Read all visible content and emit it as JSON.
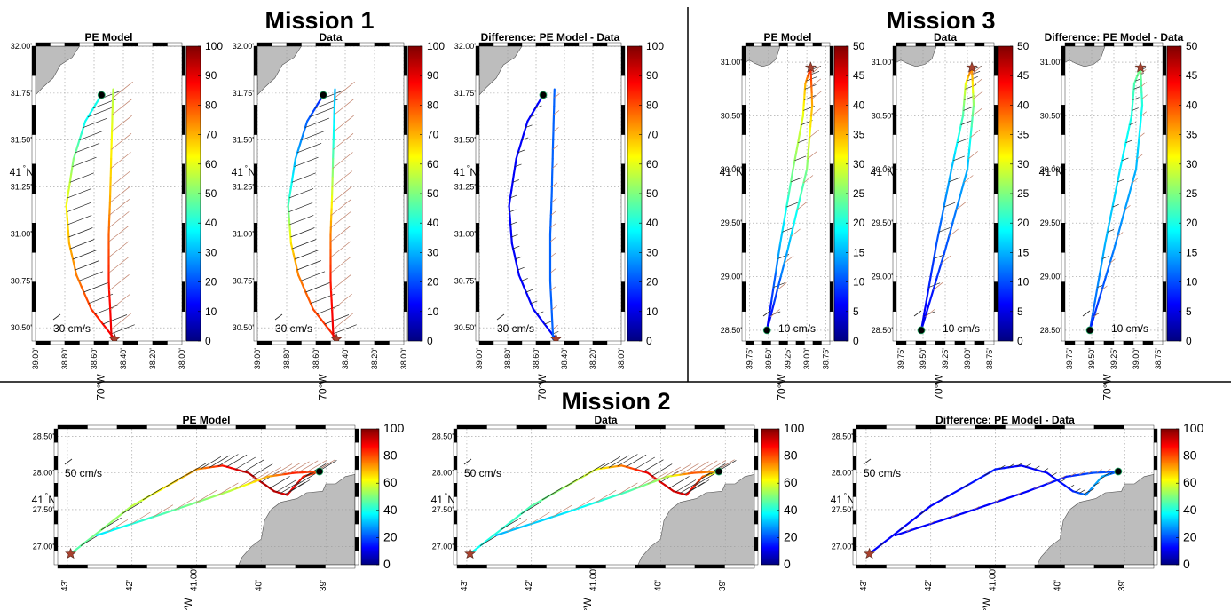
{
  "figure": {
    "missions": [
      {
        "id": "m1",
        "title": "Mission 1",
        "lat_major": "41",
        "lon_major": "70",
        "lat_hemi": "N",
        "lon_hemi": "W",
        "lat_mid_tick": "31.25'",
        "lon_mid_tick": "38.60'",
        "ticks_y": [
          "30.50'",
          "30.75'",
          "31.00'",
          "31.25'",
          "31.50'",
          "31.75'",
          "32.00'"
        ],
        "ticks_y_values": [
          30.5,
          30.75,
          31.0,
          31.25,
          31.5,
          31.75,
          32.0
        ],
        "ticks_x": [
          "39.00'",
          "38.80'",
          "38.60'",
          "38.40'",
          "38.20'",
          "38.00'"
        ],
        "ticks_x_values": [
          39.0,
          38.8,
          38.6,
          38.4,
          38.2,
          38.0
        ],
        "scale_label": "30 cm/s",
        "colorbar_ticks": [
          0,
          10,
          20,
          30,
          40,
          50,
          60,
          70,
          80,
          90,
          100
        ],
        "colorbar_range": [
          0,
          100
        ],
        "panels": [
          {
            "title": "PE Model"
          },
          {
            "title": "Data"
          },
          {
            "title": "Difference: PE Model - Data"
          }
        ]
      },
      {
        "id": "m3",
        "title": "Mission 3",
        "lat_major": "41",
        "lon_major": "70",
        "lat_hemi": "N",
        "lon_hemi": "W",
        "lat_mid_tick": "29.50'",
        "lon_mid_tick": "39.25'",
        "ticks_y": [
          "28.50'",
          "29.00'",
          "29.50'",
          "30.00'",
          "30.50'",
          "31.00'"
        ],
        "ticks_y_values": [
          28.5,
          29.0,
          29.5,
          30.0,
          30.5,
          31.0
        ],
        "ticks_x": [
          "39.75'",
          "39.50'",
          "39.25'",
          "39.00'",
          "38.75'"
        ],
        "ticks_x_values": [
          39.75,
          39.5,
          39.25,
          39.0,
          38.75
        ],
        "scale_label": "10 cm/s",
        "colorbar_ticks": [
          0,
          5,
          10,
          15,
          20,
          25,
          30,
          35,
          40,
          45,
          50
        ],
        "colorbar_range": [
          0,
          50
        ],
        "panels": [
          {
            "title": "PE Model"
          },
          {
            "title": "Data"
          },
          {
            "title": "Difference: PE Model - Data"
          }
        ]
      },
      {
        "id": "m2",
        "title": "Mission 2",
        "lat_major": "41",
        "lon_major": "70",
        "lat_hemi": "N",
        "lon_hemi": "W",
        "lat_mid_tick": "27.50'",
        "lon_mid_tick": "41.00'",
        "ticks_y": [
          "27.00'",
          "27.50'",
          "28.00'",
          "28.50'"
        ],
        "ticks_y_values": [
          27.0,
          27.5,
          28.0,
          28.5
        ],
        "ticks_x": [
          "43'",
          "42'",
          "41.00'",
          "40'",
          "39'"
        ],
        "ticks_x_values": [
          43,
          42,
          41,
          40,
          39
        ],
        "scale_label": "50 cm/s",
        "colorbar_ticks": [
          0,
          20,
          40,
          60,
          80,
          100
        ],
        "colorbar_range": [
          0,
          100
        ],
        "panels": [
          {
            "title": "PE Model"
          },
          {
            "title": "Data"
          },
          {
            "title": "Difference: PE Model - Data"
          }
        ]
      }
    ],
    "colors": {
      "land": "#bdbdbd",
      "start_marker": "#a8412e",
      "end_marker": "#000000",
      "arrow_model": "#222222",
      "arrow_data": "#c0806a",
      "colormap": [
        "#00007f",
        "#0000ff",
        "#007fff",
        "#00ffff",
        "#7fff7f",
        "#ffff00",
        "#ff7f00",
        "#ff0000",
        "#7f0000"
      ]
    }
  },
  "chart_data": [
    {
      "type": "scatter",
      "title": "Mission 1 — PE Model",
      "ylabel": "41°N",
      "xlabel": "70°W",
      "xlim": [
        39.0,
        38.0
      ],
      "ylim": [
        30.43,
        32.0
      ],
      "series": [
        {
          "values": [
            [
              38.55,
              31.74
            ],
            [
              38.66,
              31.6
            ],
            [
              38.74,
              31.4
            ],
            [
              38.79,
              31.15
            ],
            [
              38.77,
              30.95
            ],
            [
              38.72,
              30.78
            ],
            [
              38.62,
              30.6
            ],
            [
              38.46,
              30.44
            ]
          ]
        },
        {
          "values": [
            [
              38.47,
              31.77
            ],
            [
              38.48,
              31.5
            ],
            [
              38.49,
              31.2
            ],
            [
              38.5,
              31.0
            ],
            [
              38.5,
              30.75
            ],
            [
              38.48,
              30.44
            ]
          ]
        }
      ]
    },
    {
      "type": "scatter",
      "title": "Mission 1 — Data",
      "ylabel": "41°N",
      "xlabel": "70°W",
      "xlim": [
        39.0,
        38.0
      ],
      "ylim": [
        30.43,
        32.0
      ],
      "series": [
        {
          "values": [
            [
              38.55,
              31.74
            ],
            [
              38.66,
              31.6
            ],
            [
              38.74,
              31.4
            ],
            [
              38.79,
              31.15
            ],
            [
              38.77,
              30.95
            ],
            [
              38.72,
              30.78
            ],
            [
              38.62,
              30.6
            ],
            [
              38.46,
              30.44
            ]
          ]
        },
        {
          "values": [
            [
              38.47,
              31.77
            ],
            [
              38.48,
              31.5
            ],
            [
              38.49,
              31.2
            ],
            [
              38.5,
              31.0
            ],
            [
              38.5,
              30.75
            ],
            [
              38.48,
              30.44
            ]
          ]
        }
      ]
    },
    {
      "type": "scatter",
      "title": "Mission 1 — Difference: PE Model - Data",
      "ylabel": "41°N",
      "xlabel": "70°W",
      "xlim": [
        39.0,
        38.0
      ],
      "ylim": [
        30.43,
        32.0
      ],
      "series": [
        {
          "values": [
            [
              38.55,
              31.74
            ],
            [
              38.66,
              31.6
            ],
            [
              38.74,
              31.4
            ],
            [
              38.79,
              31.15
            ],
            [
              38.77,
              30.95
            ],
            [
              38.72,
              30.78
            ],
            [
              38.62,
              30.6
            ],
            [
              38.46,
              30.44
            ]
          ]
        },
        {
          "values": [
            [
              38.47,
              31.77
            ],
            [
              38.48,
              31.5
            ],
            [
              38.49,
              31.2
            ],
            [
              38.5,
              31.0
            ],
            [
              38.5,
              30.75
            ],
            [
              38.48,
              30.44
            ]
          ]
        }
      ]
    },
    {
      "type": "scatter",
      "title": "Mission 3 — PE Model",
      "ylabel": "41°N",
      "xlabel": "70°W",
      "xlim": [
        39.8,
        38.7
      ],
      "ylim": [
        28.4,
        31.15
      ],
      "series": [
        {
          "values": [
            [
              39.52,
              28.5
            ],
            [
              39.35,
              29.3
            ],
            [
              39.18,
              30.0
            ],
            [
              39.05,
              30.5
            ],
            [
              39.02,
              30.8
            ],
            [
              38.95,
              30.95
            ]
          ]
        },
        {
          "values": [
            [
              39.52,
              28.5
            ],
            [
              39.25,
              29.25
            ],
            [
              39.0,
              30.0
            ],
            [
              38.93,
              30.6
            ],
            [
              38.95,
              30.95
            ]
          ]
        }
      ]
    },
    {
      "type": "scatter",
      "title": "Mission 3 — Data",
      "ylabel": "41°N",
      "xlabel": "70°W",
      "xlim": [
        39.8,
        38.7
      ],
      "ylim": [
        28.4,
        31.15
      ],
      "series": [
        {
          "values": [
            [
              39.52,
              28.5
            ],
            [
              39.35,
              29.3
            ],
            [
              39.18,
              30.0
            ],
            [
              39.05,
              30.5
            ],
            [
              39.02,
              30.8
            ],
            [
              38.95,
              30.95
            ]
          ]
        },
        {
          "values": [
            [
              39.52,
              28.5
            ],
            [
              39.25,
              29.25
            ],
            [
              39.0,
              30.0
            ],
            [
              38.93,
              30.6
            ],
            [
              38.95,
              30.95
            ]
          ]
        }
      ]
    },
    {
      "type": "scatter",
      "title": "Mission 3 — Difference: PE Model - Data",
      "ylabel": "41°N",
      "xlabel": "70°W",
      "xlim": [
        39.8,
        38.7
      ],
      "ylim": [
        28.4,
        31.15
      ],
      "series": [
        {
          "values": [
            [
              39.52,
              28.5
            ],
            [
              39.35,
              29.3
            ],
            [
              39.18,
              30.0
            ],
            [
              39.05,
              30.5
            ],
            [
              39.02,
              30.8
            ],
            [
              38.95,
              30.95
            ]
          ]
        },
        {
          "values": [
            [
              39.52,
              28.5
            ],
            [
              39.25,
              29.25
            ],
            [
              39.0,
              30.0
            ],
            [
              38.93,
              30.6
            ],
            [
              38.95,
              30.95
            ]
          ]
        }
      ]
    },
    {
      "type": "scatter",
      "title": "Mission 2 — PE Model",
      "ylabel": "41°N",
      "xlabel": "70°W",
      "xlim": [
        43.15,
        38.55
      ],
      "ylim": [
        26.75,
        28.6
      ],
      "series": [
        {
          "values": [
            [
              42.95,
              26.9
            ],
            [
              42.0,
              27.55
            ],
            [
              41.0,
              28.05
            ],
            [
              40.6,
              28.1
            ],
            [
              40.2,
              28.0
            ],
            [
              39.8,
              27.75
            ],
            [
              39.6,
              27.7
            ],
            [
              39.35,
              27.95
            ],
            [
              39.1,
              28.02
            ]
          ]
        },
        {
          "values": [
            [
              42.55,
              27.15
            ],
            [
              41.5,
              27.45
            ],
            [
              40.5,
              27.75
            ],
            [
              39.9,
              27.95
            ],
            [
              39.5,
              28.0
            ],
            [
              39.1,
              28.02
            ]
          ]
        }
      ]
    },
    {
      "type": "scatter",
      "title": "Mission 2 — Data",
      "ylabel": "41°N",
      "xlabel": "70°W",
      "xlim": [
        43.15,
        38.55
      ],
      "ylim": [
        26.75,
        28.6
      ],
      "series": [
        {
          "values": [
            [
              42.95,
              26.9
            ],
            [
              42.0,
              27.55
            ],
            [
              41.0,
              28.05
            ],
            [
              40.6,
              28.1
            ],
            [
              40.2,
              28.0
            ],
            [
              39.8,
              27.75
            ],
            [
              39.6,
              27.7
            ],
            [
              39.35,
              27.95
            ],
            [
              39.1,
              28.02
            ]
          ]
        },
        {
          "values": [
            [
              42.55,
              27.15
            ],
            [
              41.5,
              27.45
            ],
            [
              40.5,
              27.75
            ],
            [
              39.9,
              27.95
            ],
            [
              39.5,
              28.0
            ],
            [
              39.1,
              28.02
            ]
          ]
        }
      ]
    },
    {
      "type": "scatter",
      "title": "Mission 2 — Difference: PE Model - Data",
      "ylabel": "41°N",
      "xlabel": "70°W",
      "xlim": [
        43.15,
        38.55
      ],
      "ylim": [
        26.75,
        28.6
      ],
      "series": [
        {
          "values": [
            [
              42.95,
              26.9
            ],
            [
              42.0,
              27.55
            ],
            [
              41.0,
              28.05
            ],
            [
              40.6,
              28.1
            ],
            [
              40.2,
              28.0
            ],
            [
              39.8,
              27.75
            ],
            [
              39.6,
              27.7
            ],
            [
              39.35,
              27.95
            ],
            [
              39.1,
              28.02
            ]
          ]
        },
        {
          "values": [
            [
              42.55,
              27.15
            ],
            [
              41.5,
              27.45
            ],
            [
              40.5,
              27.75
            ],
            [
              39.9,
              27.95
            ],
            [
              39.5,
              28.0
            ],
            [
              39.1,
              28.02
            ]
          ]
        }
      ]
    }
  ]
}
